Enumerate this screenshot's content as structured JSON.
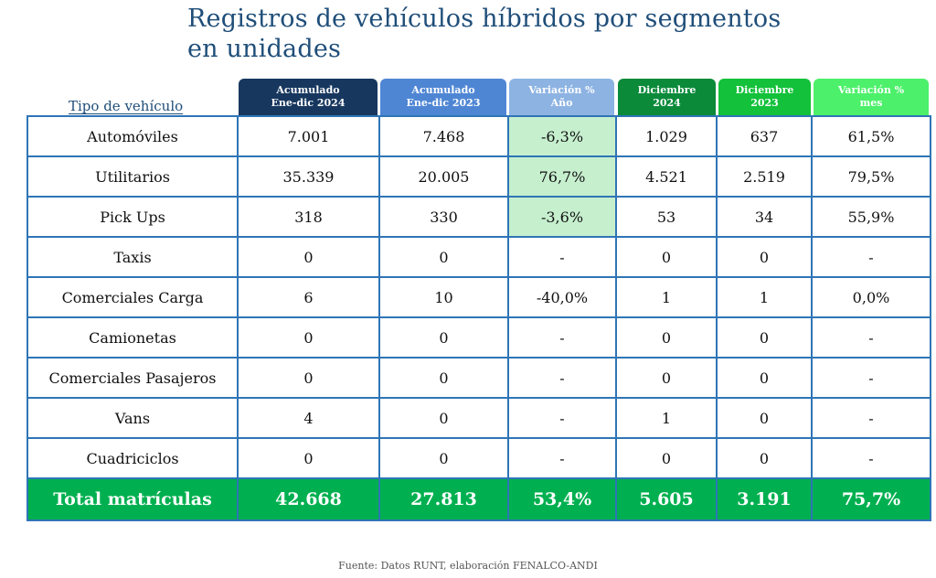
{
  "title_line1": "Registros de vehículos híbridos por segmentos",
  "title_line2": "en unidades",
  "row_header_label": "Tipo de vehículo",
  "columns": [
    {
      "line1": "Acumulado",
      "line2": "Ene-dic 2024",
      "color": "#17375e"
    },
    {
      "line1": "Acumulado",
      "line2": "Ene-dic 2023",
      "color": "#4f86d4"
    },
    {
      "line1": "Variación %",
      "line2": "Año",
      "color": "#8db3e2"
    },
    {
      "line1": "Diciembre",
      "line2": "2024",
      "color": "#0b8a3a"
    },
    {
      "line1": "Diciembre",
      "line2": "2023",
      "color": "#13c13a"
    },
    {
      "line1": "Variación %",
      "line2": "mes",
      "color": "#4cf06a"
    }
  ],
  "rows": [
    {
      "label": "Automóviles",
      "values": [
        "7.001",
        "7.468",
        "-6,3%",
        "1.029",
        "637",
        "61,5%"
      ]
    },
    {
      "label": "Utilitarios",
      "values": [
        "35.339",
        "20.005",
        "76,7%",
        "4.521",
        "2.519",
        "79,5%"
      ]
    },
    {
      "label": "Pick Ups",
      "values": [
        "318",
        "330",
        "-3,6%",
        "53",
        "34",
        "55,9%"
      ]
    },
    {
      "label": "Taxis",
      "values": [
        "0",
        "0",
        "-",
        "0",
        "0",
        "-"
      ]
    },
    {
      "label": "Comerciales Carga",
      "values": [
        "6",
        "10",
        "-40,0%",
        "1",
        "1",
        "0,0%"
      ]
    },
    {
      "label": "Camionetas",
      "values": [
        "0",
        "0",
        "-",
        "0",
        "0",
        "-"
      ]
    },
    {
      "label": "Comerciales Pasajeros",
      "values": [
        "0",
        "0",
        "-",
        "0",
        "0",
        "-"
      ]
    },
    {
      "label": "Vans",
      "values": [
        "4",
        "0",
        "-",
        "1",
        "0",
        "-"
      ]
    },
    {
      "label": "Cuadriciclos",
      "values": [
        "0",
        "0",
        "-",
        "0",
        "0",
        "-"
      ]
    }
  ],
  "total": {
    "label": "Total matrículas",
    "values": [
      "42.668",
      "27.813",
      "53,4%",
      "5.605",
      "3.191",
      "75,7%"
    ]
  },
  "highlight_color": "#c6efce",
  "total_color": "#00b050",
  "source": "Fuente: Datos RUNT, elaboración FENALCO-ANDI"
}
